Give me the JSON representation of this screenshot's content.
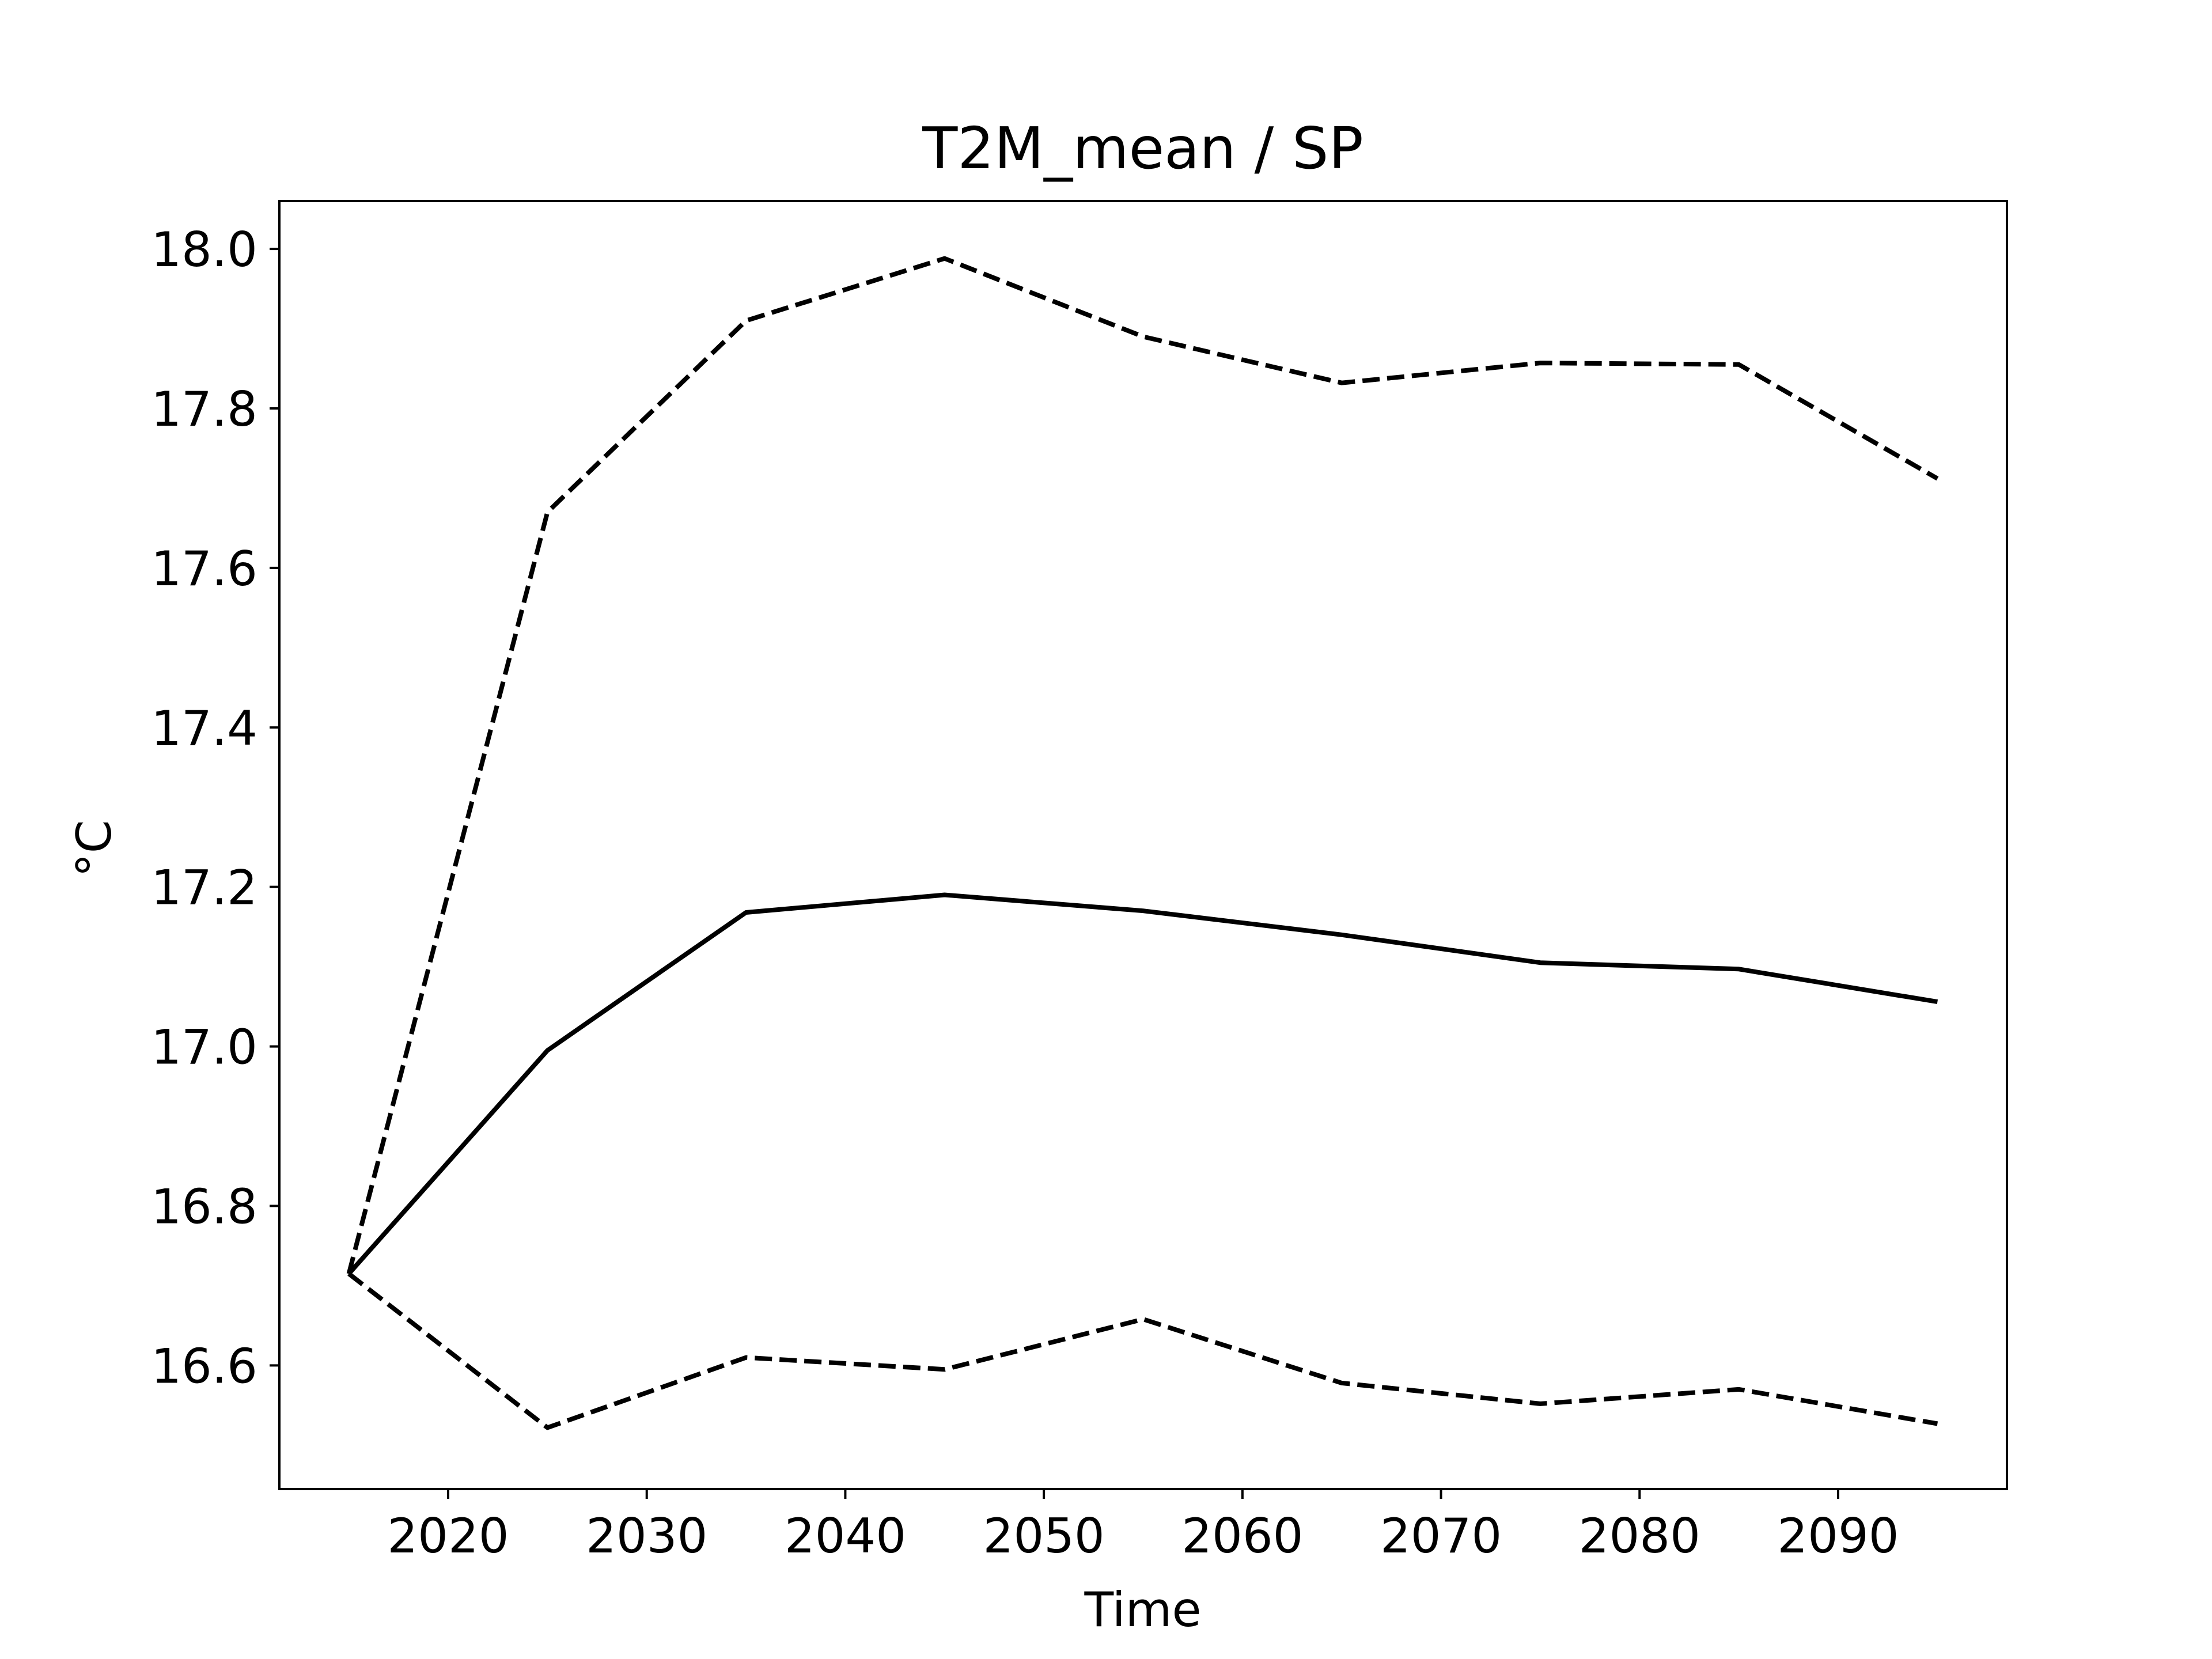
{
  "chart_data": {
    "type": "line",
    "title": "T2M_mean / SP",
    "xlabel": "Time",
    "ylabel": "°C",
    "xlim": [
      2011.5,
      2098.5
    ],
    "ylim": [
      16.445,
      18.06
    ],
    "xticks": [
      2020,
      2030,
      2040,
      2050,
      2060,
      2070,
      2080,
      2090
    ],
    "yticks": [
      16.6,
      16.8,
      17.0,
      17.2,
      17.4,
      17.6,
      17.8,
      18.0
    ],
    "grid": false,
    "x": [
      2015,
      2025,
      2035,
      2045,
      2055,
      2065,
      2075,
      2085,
      2095
    ],
    "series": [
      {
        "style": "solid",
        "color": "#000000",
        "values": [
          16.715,
          16.995,
          17.168,
          17.19,
          17.17,
          17.14,
          17.105,
          17.097,
          17.056
        ]
      },
      {
        "style": "dashed",
        "color": "#000000",
        "values": [
          16.715,
          17.67,
          17.91,
          17.988,
          17.89,
          17.832,
          17.857,
          17.855,
          17.712
        ]
      },
      {
        "style": "dashed",
        "color": "#000000",
        "values": [
          16.715,
          16.522,
          16.61,
          16.595,
          16.658,
          16.578,
          16.552,
          16.57,
          16.527
        ]
      }
    ]
  }
}
